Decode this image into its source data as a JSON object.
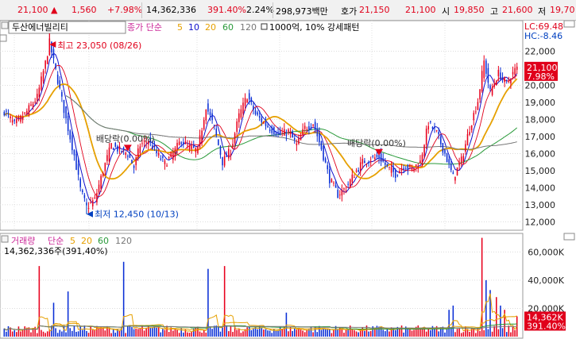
{
  "ticker": {
    "price": "21,100",
    "change": "1,560",
    "change_pct": "+7.98%",
    "volume": "14,362,336",
    "volume_ratio": "391.40%",
    "turnover": "2.24%",
    "trade_value": "298,973백만",
    "ask_label": "호가",
    "ask1": "21,150",
    "ask2": "21,100",
    "open_label": "시",
    "open": "19,850",
    "high_label": "고",
    "high": "21,600",
    "low_label": "저",
    "low": "19,70"
  },
  "chart_data": [
    {
      "type": "candlestick",
      "title": "두산에너빌리티",
      "legend": {
        "prefix": "종가 단순",
        "periods": [
          "5",
          "10",
          "20",
          "60",
          "120"
        ],
        "colors": [
          "#e6a000",
          "#1010cc",
          "#e6a000",
          "#2a9a3a",
          "#777777"
        ],
        "unit_note": "1000억, 10% 강세패턴"
      },
      "lc_label": "LC:69.48",
      "hc_label": "HC:-8.46",
      "y_ticks": [
        "22,000",
        "21,000",
        "20,000",
        "19,000",
        "18,000",
        "17,000",
        "16,000",
        "15,000",
        "14,000",
        "13,000",
        "12,000"
      ],
      "y_tick_values": [
        22000,
        21000,
        20000,
        19000,
        18000,
        17000,
        16000,
        15000,
        14000,
        13000,
        12000
      ],
      "ylim": [
        11600,
        23700
      ],
      "current_price_label": "21,100",
      "current_pct_label": "7.98%",
      "high_annotation": "최고 23,050 (08/26)",
      "low_annotation": "최저 12,450 (10/13)",
      "dividend_label": "배당락(0.00%)",
      "dividend_marks": [
        {
          "i": 60,
          "price": 16050
        },
        {
          "i": 182,
          "price": 15800
        }
      ],
      "high_point": {
        "i": 22,
        "price": 23050
      },
      "low_point": {
        "i": 40,
        "price": 12450
      },
      "candle_count": 250,
      "anchors": [
        [
          0,
          18500
        ],
        [
          5,
          17700
        ],
        [
          10,
          18300
        ],
        [
          16,
          19300
        ],
        [
          20,
          21300
        ],
        [
          22,
          22500
        ],
        [
          26,
          20300
        ],
        [
          30,
          18000
        ],
        [
          34,
          15900
        ],
        [
          37,
          13900
        ],
        [
          40,
          12850
        ],
        [
          44,
          13300
        ],
        [
          48,
          15000
        ],
        [
          52,
          16500
        ],
        [
          56,
          16200
        ],
        [
          60,
          16000
        ],
        [
          63,
          15200
        ],
        [
          66,
          16500
        ],
        [
          70,
          16800
        ],
        [
          74,
          16000
        ],
        [
          78,
          15400
        ],
        [
          82,
          16000
        ],
        [
          86,
          16800
        ],
        [
          90,
          16300
        ],
        [
          94,
          16200
        ],
        [
          98,
          18800
        ],
        [
          102,
          17500
        ],
        [
          106,
          15500
        ],
        [
          110,
          16200
        ],
        [
          114,
          18200
        ],
        [
          118,
          19400
        ],
        [
          122,
          18300
        ],
        [
          126,
          17800
        ],
        [
          130,
          17400
        ],
        [
          134,
          17100
        ],
        [
          138,
          17300
        ],
        [
          142,
          16500
        ],
        [
          146,
          17500
        ],
        [
          150,
          17800
        ],
        [
          154,
          16300
        ],
        [
          158,
          14500
        ],
        [
          162,
          13600
        ],
        [
          166,
          14000
        ],
        [
          170,
          14800
        ],
        [
          174,
          15500
        ],
        [
          178,
          15700
        ],
        [
          182,
          15800
        ],
        [
          186,
          15200
        ],
        [
          190,
          14800
        ],
        [
          194,
          15300
        ],
        [
          198,
          15100
        ],
        [
          202,
          15500
        ],
        [
          206,
          17800
        ],
        [
          210,
          17200
        ],
        [
          214,
          16000
        ],
        [
          218,
          14600
        ],
        [
          222,
          15600
        ],
        [
          226,
          17500
        ],
        [
          230,
          19100
        ],
        [
          233,
          21400
        ],
        [
          236,
          19600
        ],
        [
          240,
          20700
        ],
        [
          244,
          20100
        ],
        [
          249,
          21100
        ]
      ]
    },
    {
      "type": "bar",
      "title": "거래량",
      "legend": {
        "prefix": "단순",
        "periods": [
          "5",
          "20",
          "60",
          "120"
        ],
        "colors": [
          "#e6a000",
          "#e6a000",
          "#2a9a3a",
          "#777777"
        ]
      },
      "value_label": "14,362,336주(391,40%)",
      "y_ticks": [
        "60,000K",
        "40,000K",
        "20,000K"
      ],
      "y_tick_values": [
        60000,
        40000,
        20000
      ],
      "ylim": [
        0,
        72000
      ],
      "current_volume_label": "14,362K",
      "current_ratio_label": "391.40%",
      "last_volume": 14362,
      "spikes": [
        [
          17,
          50000
        ],
        [
          24,
          24000
        ],
        [
          31,
          32000
        ],
        [
          58,
          53000
        ],
        [
          99,
          48000
        ],
        [
          107,
          50000
        ],
        [
          137,
          17000
        ],
        [
          216,
          19000
        ],
        [
          218,
          22000
        ],
        [
          232,
          70000
        ],
        [
          234,
          40000
        ],
        [
          236,
          33000
        ],
        [
          239,
          28000
        ],
        [
          241,
          22000
        ],
        [
          243,
          19000
        ]
      ]
    }
  ]
}
